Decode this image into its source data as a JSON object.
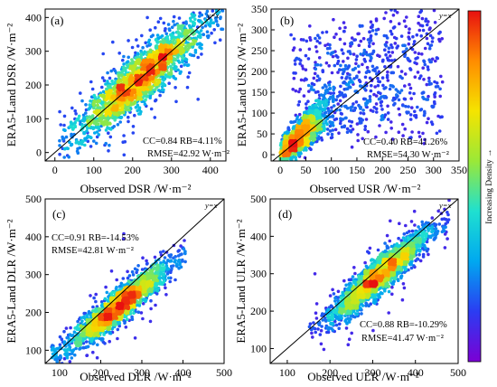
{
  "chart_data": [
    {
      "type": "scatter",
      "panel": "(a)",
      "xlabel": "Observed DSR /W·m⁻²",
      "ylabel": "ERA5-Land DSR /W·m⁻²",
      "xlim": [
        -25,
        440
      ],
      "ylim": [
        -25,
        425
      ],
      "xticks": [
        0,
        100,
        200,
        300,
        400
      ],
      "yticks": [
        0,
        100,
        200,
        300,
        400
      ],
      "identity_line_label": "y=x",
      "stats": [
        "CC=0.84 RB=4.11%",
        "RMSE=42.92 W·m⁻²"
      ],
      "cc": 0.84,
      "rb_percent": 4.11,
      "rmse": 42.92,
      "core_trend": {
        "slope": 0.95,
        "intercept": 10,
        "x_range": [
          40,
          410
        ]
      }
    },
    {
      "type": "scatter",
      "panel": "(b)",
      "xlabel": "Observed USR /W·m⁻²",
      "ylabel": "ERA5-Land USR /W·m⁻²",
      "xlim": [
        -18,
        350
      ],
      "ylim": [
        -15,
        350
      ],
      "xticks": [
        0,
        50,
        100,
        150,
        200,
        250,
        300,
        350
      ],
      "yticks": [
        0,
        50,
        100,
        150,
        200,
        250,
        300,
        350
      ],
      "identity_line_label": "y=x",
      "stats": [
        "CC=0.40 RB=41.26%",
        "RMSE=54.30 W·m⁻²"
      ],
      "cc": 0.4,
      "rb_percent": 41.26,
      "rmse": 54.3,
      "core_trend": {
        "slope": 1.0,
        "intercept": 0,
        "x_range": [
          10,
          320
        ]
      }
    },
    {
      "type": "scatter",
      "panel": "(c)",
      "xlabel": "Observed DLR /W·m⁻²",
      "ylabel": "ERA5-Land DLR /W·m⁻²",
      "xlim": [
        65,
        500
      ],
      "ylim": [
        65,
        500
      ],
      "xticks": [
        100,
        200,
        300,
        400,
        500
      ],
      "yticks": [
        100,
        200,
        300,
        400,
        500
      ],
      "identity_line_label": "y=x",
      "stats": [
        "CC=0.91 RB=-14.53%",
        "RMSE=42.81 W·m⁻²"
      ],
      "cc": 0.91,
      "rb_percent": -14.53,
      "rmse": 42.81,
      "core_trend": {
        "slope": 0.85,
        "intercept": 10,
        "x_range": [
          110,
          380
        ]
      }
    },
    {
      "type": "scatter",
      "panel": "(d)",
      "xlabel": "Observed ULR /W·m⁻²",
      "ylabel": "ERA5-Land ULR /W·m⁻²",
      "xlim": [
        60,
        500
      ],
      "ylim": [
        60,
        500
      ],
      "xticks": [
        100,
        200,
        300,
        400,
        500
      ],
      "yticks": [
        100,
        200,
        300,
        400,
        500
      ],
      "identity_line_label": "y=x",
      "stats": [
        "CC=0.88 RB=-10.29%",
        "RMSE=41.47 W·m⁻²"
      ],
      "cc": 0.88,
      "rb_percent": -10.29,
      "rmse": 41.47,
      "core_trend": {
        "slope": 0.95,
        "intercept": -5,
        "x_range": [
          180,
          450
        ]
      }
    }
  ],
  "colorbar": {
    "label": "Increasing Density →",
    "colors": [
      "#7b00d4",
      "#2b3cf2",
      "#00a8f0",
      "#1fe0d0",
      "#9ae838",
      "#f5e400",
      "#ff8c00",
      "#e81010"
    ]
  },
  "colors": {
    "axis": "#000000",
    "identity_line": "#000000"
  }
}
